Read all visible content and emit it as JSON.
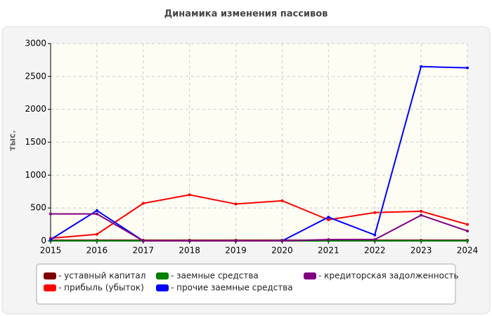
{
  "chart_data": {
    "type": "line",
    "title": "Динамика изменения пассивов",
    "y_label": "тыс.",
    "x": [
      2015,
      2016,
      2017,
      2018,
      2019,
      2020,
      2021,
      2022,
      2023,
      2024
    ],
    "xlim": [
      2015,
      2024
    ],
    "xticks": [
      2015,
      2016,
      2017,
      2018,
      2019,
      2020,
      2021,
      2022,
      2023,
      2024
    ],
    "ylim": [
      0,
      3000
    ],
    "yticks": [
      0,
      500,
      1000,
      1500,
      2000,
      2500,
      3000
    ],
    "grid": true,
    "legend": "bottom",
    "series": [
      {
        "name": "- уставный капитал",
        "color": "#800000",
        "values": [
          10,
          10,
          10,
          10,
          10,
          10,
          10,
          10,
          10,
          10
        ]
      },
      {
        "name": "- прибыль (убыток)",
        "color": "#ff0000",
        "values": [
          40,
          100,
          570,
          700,
          560,
          610,
          320,
          430,
          450,
          250
        ]
      },
      {
        "name": "- заемные средства",
        "color": "#008000",
        "values": [
          0,
          0,
          0,
          0,
          0,
          0,
          0,
          0,
          0,
          0
        ]
      },
      {
        "name": "- прочие заемные средства",
        "color": "#0000ff",
        "values": [
          20,
          460,
          0,
          0,
          0,
          0,
          360,
          90,
          2650,
          2630
        ]
      },
      {
        "name": "- кредиторская задолженность",
        "color": "#800080",
        "values": [
          410,
          410,
          0,
          0,
          0,
          0,
          20,
          20,
          390,
          150
        ]
      }
    ]
  }
}
